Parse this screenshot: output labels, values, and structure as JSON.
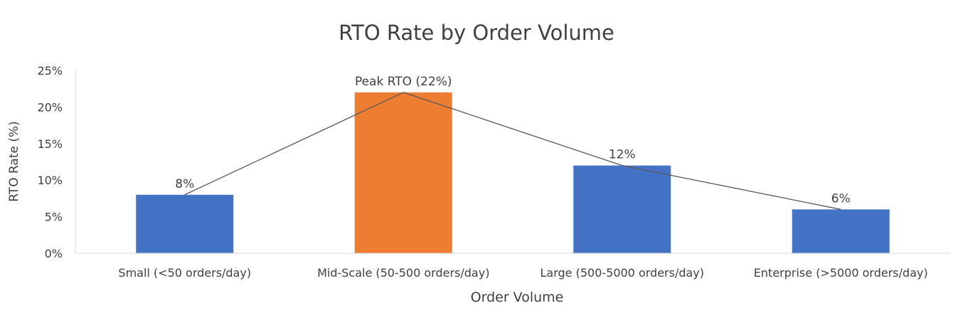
{
  "chart_data": {
    "type": "bar",
    "title": "RTO Rate by Order Volume",
    "xlabel": "Order Volume",
    "ylabel": "RTO Rate (%)",
    "categories": [
      "Small (<50 orders/day)",
      "Mid-Scale (50-500 orders/day)",
      "Large (500-5000 orders/day)",
      "Enterprise (>5000 orders/day)"
    ],
    "values": [
      8,
      22,
      12,
      6
    ],
    "data_labels": [
      "8%",
      "Peak RTO (22%)",
      "12%",
      "6%"
    ],
    "bar_colors": [
      "#4472C4",
      "#ED7D31",
      "#4472C4",
      "#4472C4"
    ],
    "line_overlay": true,
    "line_color": "#595959",
    "ylim": [
      0,
      25
    ],
    "yticks": [
      0,
      5,
      10,
      15,
      20,
      25
    ],
    "ytick_labels": [
      "0%",
      "5%",
      "10%",
      "15%",
      "20%",
      "25%"
    ],
    "grid": false,
    "legend": "none"
  }
}
